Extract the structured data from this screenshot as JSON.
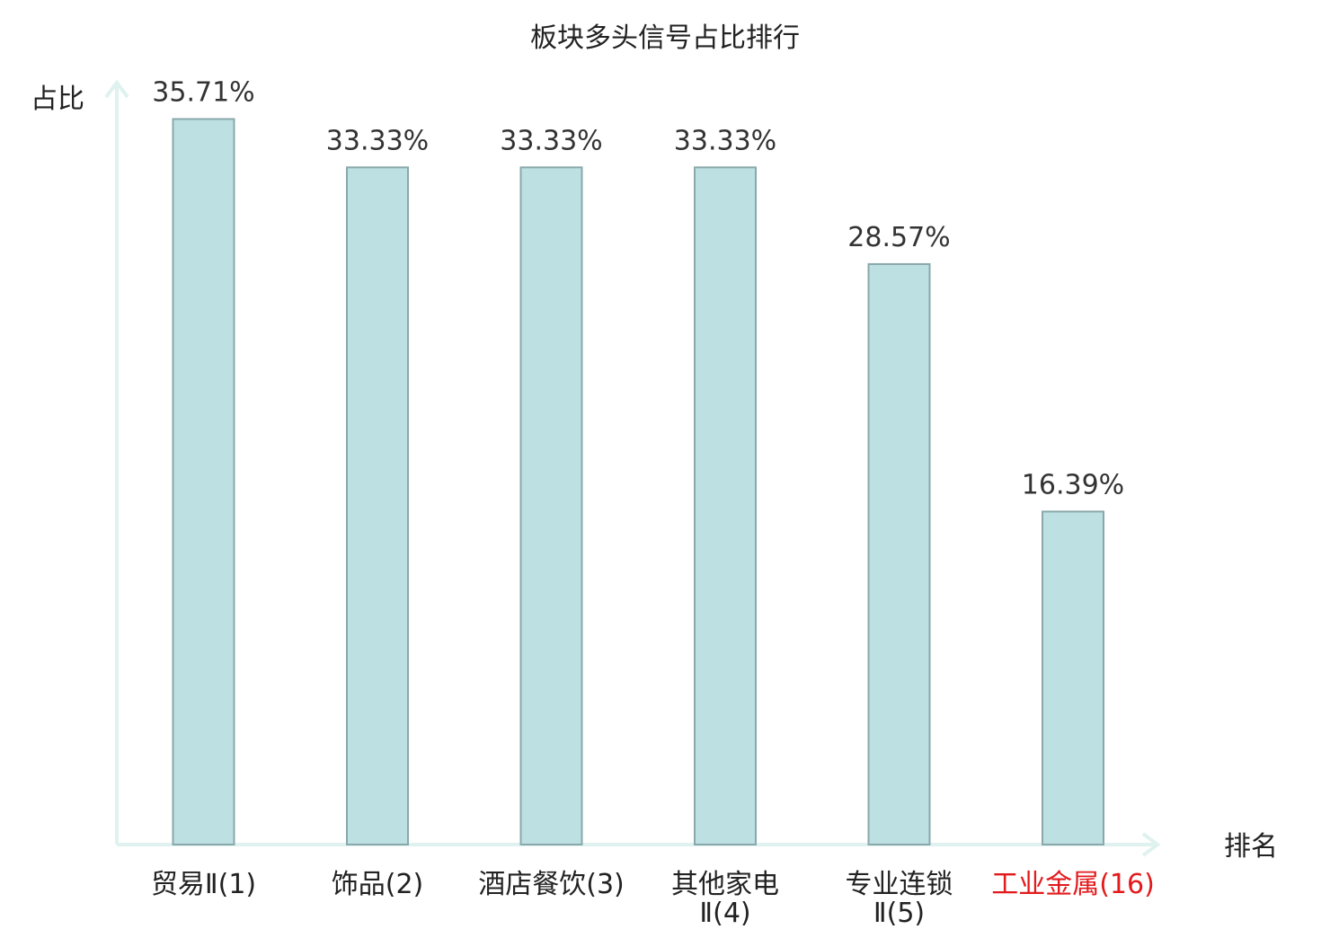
{
  "chart_data": {
    "type": "bar",
    "title": "板块多头信号占比排行",
    "ylabel": "占比",
    "xlabel": "排名",
    "categories": [
      [
        "贸易Ⅱ(1)"
      ],
      [
        "饰品(2)"
      ],
      [
        "酒店餐饮(3)"
      ],
      [
        "其他家电",
        "Ⅱ(4)"
      ],
      [
        "专业连锁",
        "Ⅱ(5)"
      ],
      [
        "工业金属(16)"
      ]
    ],
    "values": [
      35.71,
      33.33,
      33.33,
      33.33,
      28.57,
      16.39
    ],
    "value_labels": [
      "35.71%",
      "33.33%",
      "33.33%",
      "33.33%",
      "28.57%",
      "16.39%"
    ],
    "highlighted_category_index": 5,
    "ylim": [
      0,
      37.5
    ],
    "grid": false,
    "legend": "none",
    "colors": {
      "bar_fill": "#bde0e3",
      "bar_stroke": "#8aa8ab",
      "axis": "#dff2ef",
      "text": "#222222",
      "value_label": "#333333",
      "highlight": "#e31a1c"
    }
  }
}
